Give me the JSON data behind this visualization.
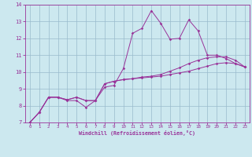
{
  "xlabel": "Windchill (Refroidissement éolien,°C)",
  "xlim": [
    -0.5,
    23.5
  ],
  "ylim": [
    7,
    14
  ],
  "xticks": [
    0,
    1,
    2,
    3,
    4,
    5,
    6,
    7,
    8,
    9,
    10,
    11,
    12,
    13,
    14,
    15,
    16,
    17,
    18,
    19,
    20,
    21,
    22,
    23
  ],
  "yticks": [
    7,
    8,
    9,
    10,
    11,
    12,
    13,
    14
  ],
  "bg_color": "#cce8ef",
  "line_color": "#993399",
  "grid_color": "#99bbcc",
  "series": [
    [
      7.0,
      7.6,
      8.5,
      8.5,
      8.3,
      8.3,
      7.9,
      8.3,
      9.1,
      9.2,
      10.2,
      12.3,
      12.6,
      13.65,
      12.9,
      11.95,
      12.0,
      13.1,
      12.45,
      11.0,
      11.0,
      10.8,
      10.5,
      10.3
    ],
    [
      7.0,
      7.6,
      8.5,
      8.5,
      8.35,
      8.5,
      8.3,
      8.3,
      9.3,
      9.45,
      9.55,
      9.6,
      9.7,
      9.75,
      9.85,
      10.05,
      10.25,
      10.5,
      10.7,
      10.85,
      10.9,
      10.9,
      10.7,
      10.3
    ],
    [
      7.0,
      7.6,
      8.5,
      8.5,
      8.35,
      8.5,
      8.3,
      8.3,
      9.3,
      9.45,
      9.55,
      9.6,
      9.65,
      9.7,
      9.75,
      9.85,
      9.95,
      10.05,
      10.2,
      10.35,
      10.5,
      10.55,
      10.5,
      10.3
    ]
  ]
}
